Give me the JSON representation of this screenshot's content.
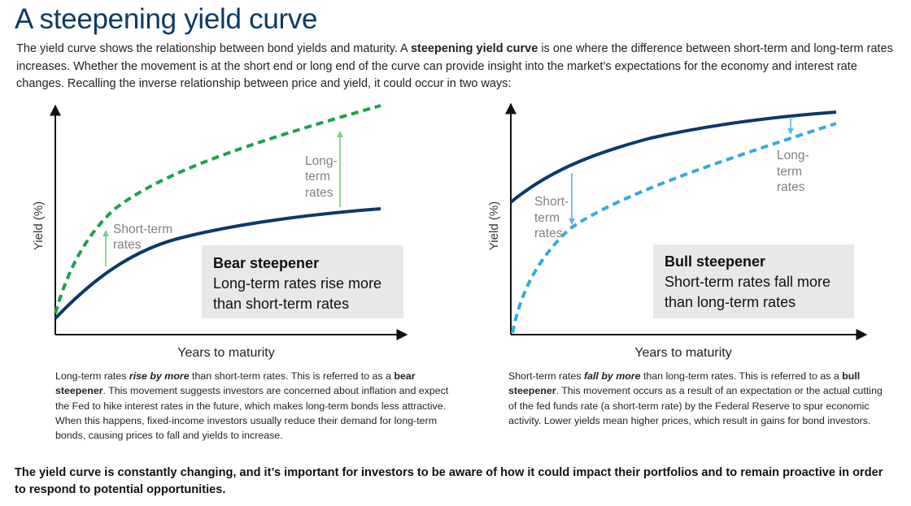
{
  "title": "A steepening yield curve",
  "intro": {
    "before": "The yield curve shows the relationship between bond yields and maturity. A ",
    "bold": "steepening yield curve",
    "after": " is one where the difference between short-term and long-term rates increases. Whether the movement is at the short end or long end of the curve can provide insight into the market’s expectations for the economy and interest rate changes. Recalling the inverse relationship between price and yield, it could occur in two ways:"
  },
  "colors": {
    "navy": "#0b3a66",
    "green": "#1fa04a",
    "light_blue": "#36a9dd",
    "arrow_green": "#7ccd7e",
    "arrow_blue": "#5eb6e4",
    "box_gray": "#e7e8e9",
    "label_gray": "#808080"
  },
  "bear": {
    "y_label": "Yield (%)",
    "x_label": "Years to maturity",
    "short_term_label": [
      "Short-term",
      "rates"
    ],
    "long_term_label": [
      "Long-",
      "term",
      "rates"
    ],
    "box_title": "Bear steepener",
    "box_text": [
      "Long-term rates rise more",
      "than short-term rates"
    ],
    "desc": {
      "p1": "Long-term rates ",
      "em": "rise by more",
      "p2": " than short-term rates. This is referred to as a ",
      "b": "bear steepener",
      "p3": ". This movement suggests investors are concerned about inflation and expect the Fed to hike interest rates in the future, which makes long-term bonds less attractive. When this happens, fixed-income investors usually reduce their demand for long-term bonds, causing prices to fall and yields to increase."
    }
  },
  "bull": {
    "y_label": "Yield (%)",
    "x_label": "Years to maturity",
    "short_term_label": [
      "Short-",
      "term",
      "rates"
    ],
    "long_term_label": [
      "Long-",
      "term",
      "rates"
    ],
    "box_title": "Bull steepener",
    "box_text": [
      "Short-term rates fall more",
      "than long-term rates"
    ],
    "desc": {
      "p1": "Short-term rates ",
      "em": "fall by more",
      "p2": " than long-term rates. This is referred to as a ",
      "b": "bull steepener",
      "p3": ". This movement occurs as a result of an expectation or the actual cutting of the fed funds rate (a short-term rate) by the Federal Reserve to spur economic activity. Lower yields mean higher prices, which result in gains for bond investors."
    }
  },
  "footer": "The yield curve is constantly changing, and it’s important for investors to be aware of how it could impact their portfolios and to remain proactive in order to respond to potential opportunities."
}
